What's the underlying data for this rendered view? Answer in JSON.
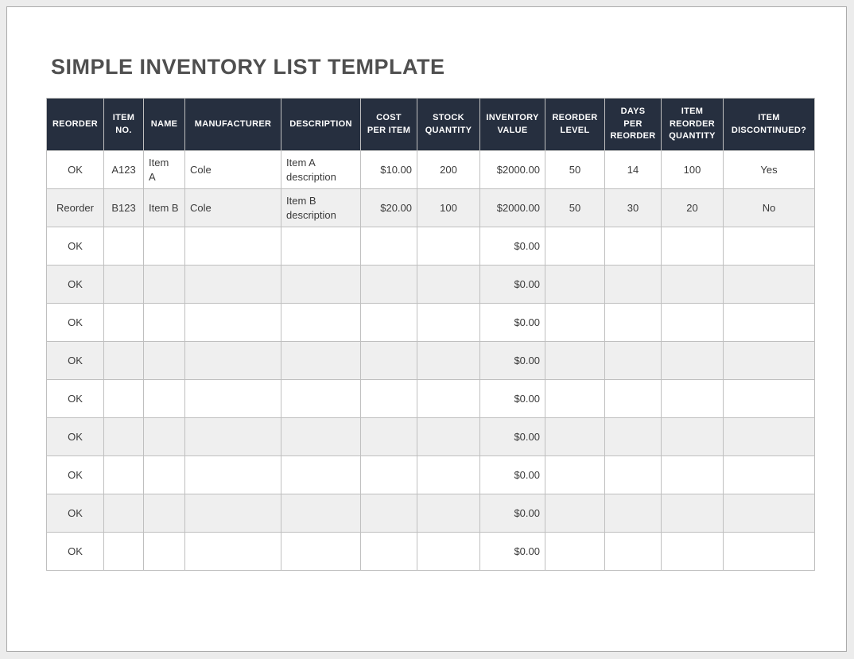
{
  "page": {
    "title": "SIMPLE INVENTORY LIST TEMPLATE"
  },
  "table": {
    "columns": [
      {
        "key": "reorder",
        "label": "REORDER",
        "align": "center"
      },
      {
        "key": "item-no",
        "label": "ITEM\nNO.",
        "align": "center"
      },
      {
        "key": "name",
        "label": "NAME",
        "align": "left"
      },
      {
        "key": "manufacturer",
        "label": "MANUFACTURER",
        "align": "left"
      },
      {
        "key": "description",
        "label": "DESCRIPTION",
        "align": "left"
      },
      {
        "key": "cost-per-item",
        "label": "COST\nPER ITEM",
        "align": "right"
      },
      {
        "key": "stock-quantity",
        "label": "STOCK\nQUANTITY",
        "align": "center"
      },
      {
        "key": "inventory-value",
        "label": "INVENTORY\nVALUE",
        "align": "right"
      },
      {
        "key": "reorder-level",
        "label": "REORDER\nLEVEL",
        "align": "center"
      },
      {
        "key": "days-per-reorder",
        "label": "DAYS\nPER\nREORDER",
        "align": "center"
      },
      {
        "key": "item-reorder-quantity",
        "label": "ITEM\nREORDER\nQUANTITY",
        "align": "center"
      },
      {
        "key": "item-discontinued",
        "label": "ITEM\nDISCONTINUED?",
        "align": "center"
      }
    ],
    "rows": [
      [
        "OK",
        "A123",
        "Item\nA",
        "Cole",
        "Item A description",
        "$10.00",
        "200",
        "$2000.00",
        "50",
        "14",
        "100",
        "Yes"
      ],
      [
        "Reorder",
        "B123",
        "Item B",
        "Cole",
        "Item B description",
        "$20.00",
        "100",
        "$2000.00",
        "50",
        "30",
        "20",
        "No"
      ],
      [
        "OK",
        "",
        "",
        "",
        "",
        "",
        "",
        "$0.00",
        "",
        "",
        "",
        ""
      ],
      [
        "OK",
        "",
        "",
        "",
        "",
        "",
        "",
        "$0.00",
        "",
        "",
        "",
        ""
      ],
      [
        "OK",
        "",
        "",
        "",
        "",
        "",
        "",
        "$0.00",
        "",
        "",
        "",
        ""
      ],
      [
        "OK",
        "",
        "",
        "",
        "",
        "",
        "",
        "$0.00",
        "",
        "",
        "",
        ""
      ],
      [
        "OK",
        "",
        "",
        "",
        "",
        "",
        "",
        "$0.00",
        "",
        "",
        "",
        ""
      ],
      [
        "OK",
        "",
        "",
        "",
        "",
        "",
        "",
        "$0.00",
        "",
        "",
        "",
        ""
      ],
      [
        "OK",
        "",
        "",
        "",
        "",
        "",
        "",
        "$0.00",
        "",
        "",
        "",
        ""
      ],
      [
        "OK",
        "",
        "",
        "",
        "",
        "",
        "",
        "$0.00",
        "",
        "",
        "",
        ""
      ],
      [
        "OK",
        "",
        "",
        "",
        "",
        "",
        "",
        "$0.00",
        "",
        "",
        "",
        ""
      ]
    ]
  },
  "colors": {
    "canvas_bg": "#ECECEC",
    "page_border": "#ABABAB",
    "title_text": "#4F4F4F",
    "header_bg": "#262F3F",
    "header_text": "#FFFFFF",
    "row_bg": "#FFFFFF",
    "alt_row_bg": "#EFEFEF",
    "grid_border": "#BFBFBF",
    "body_text": "#3A3A3A"
  }
}
